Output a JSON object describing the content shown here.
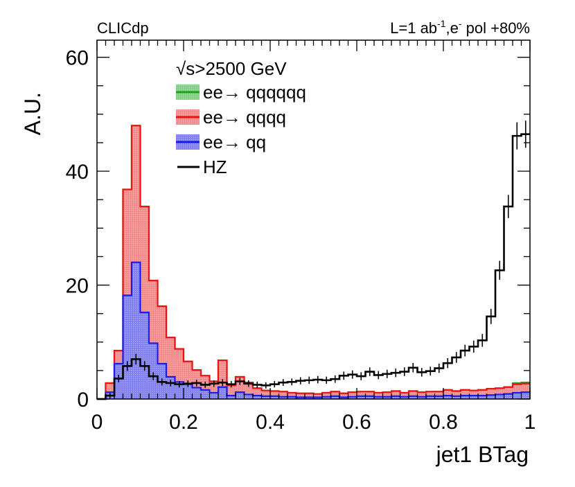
{
  "chart_data": {
    "type": "histogram",
    "experiment_label": "CLICdp",
    "lumi_label": {
      "base": "L=1 ab",
      "sup1": "-1",
      "mid": ",e",
      "sup2": "-",
      "tail": " pol +80%"
    },
    "energy_label": {
      "root": "√",
      "text": "s>2500 GeV"
    },
    "xlabel": "jet1 BTag",
    "ylabel": "A.U.",
    "xlim": [
      0,
      1
    ],
    "ylim": [
      0,
      63
    ],
    "xticks": [
      "0",
      "0.2",
      "0.4",
      "0.6",
      "0.8",
      "1"
    ],
    "yticks": [
      "0",
      "20",
      "40",
      "60"
    ],
    "bin_edges_x": [
      0,
      0.02,
      0.04,
      0.06,
      0.08,
      0.1,
      0.12,
      0.14,
      0.16,
      0.18,
      0.2,
      0.22,
      0.24,
      0.26,
      0.28,
      0.3,
      0.32,
      0.34,
      0.36,
      0.38,
      0.4,
      0.42,
      0.44,
      0.46,
      0.48,
      0.5,
      0.52,
      0.54,
      0.56,
      0.58,
      0.6,
      0.62,
      0.64,
      0.66,
      0.68,
      0.7,
      0.72,
      0.74,
      0.76,
      0.78,
      0.8,
      0.82,
      0.84,
      0.86,
      0.88,
      0.9,
      0.92,
      0.94,
      0.96,
      0.98,
      1.0
    ],
    "stacks": [
      {
        "name": "ee→ qqqqqq",
        "color": "#22a022",
        "fill": "#7fd07f",
        "values": [
          0,
          2.8,
          8.5,
          36.8,
          48.0,
          33.8,
          20.8,
          16.3,
          10.8,
          8.8,
          6.6,
          5.1,
          4.1,
          3.1,
          6.8,
          2.4,
          3.9,
          2.9,
          1.9,
          1.5,
          1.4,
          1.3,
          1.1,
          1.0,
          1.0,
          0.9,
          1.1,
          1.3,
          1.0,
          1.2,
          1.3,
          1.3,
          1.1,
          1.2,
          1.4,
          1.1,
          1.4,
          1.2,
          1.3,
          1.3,
          1.6,
          1.4,
          1.6,
          1.5,
          1.6,
          1.8,
          1.9,
          2.1,
          2.8,
          2.9
        ]
      },
      {
        "name": "ee→ qqqq",
        "color": "#ee1111",
        "fill": "#f28a8a",
        "values": [
          0,
          2.8,
          8.5,
          36.8,
          48.0,
          33.8,
          20.8,
          16.3,
          10.8,
          8.8,
          6.6,
          5.1,
          4.1,
          3.1,
          6.8,
          2.4,
          3.9,
          2.9,
          1.9,
          1.5,
          1.4,
          1.3,
          1.1,
          1.0,
          1.0,
          0.9,
          1.1,
          1.3,
          1.0,
          1.2,
          1.3,
          1.3,
          1.1,
          1.2,
          1.4,
          1.1,
          1.4,
          1.2,
          1.3,
          1.3,
          1.6,
          1.4,
          1.6,
          1.5,
          1.6,
          1.8,
          1.9,
          2.1,
          2.6,
          2.7
        ]
      },
      {
        "name": "ee→ qq",
        "color": "#1b1bee",
        "fill": "#7f7ff0",
        "values": [
          0,
          1.2,
          6.2,
          18.2,
          24.0,
          15.2,
          9.8,
          6.2,
          3.9,
          3.0,
          2.6,
          2.0,
          1.6,
          1.1,
          2.1,
          0.6,
          1.2,
          0.8,
          0.6,
          0.5,
          0.5,
          0.4,
          0.4,
          0.3,
          0.3,
          0.3,
          0.4,
          0.5,
          0.3,
          0.4,
          0.5,
          0.5,
          0.4,
          0.4,
          0.5,
          0.4,
          0.5,
          0.4,
          0.5,
          0.5,
          0.6,
          0.5,
          0.6,
          0.6,
          0.6,
          0.7,
          0.8,
          0.9,
          1.1,
          1.2
        ]
      }
    ],
    "signal": {
      "name": "HZ",
      "color": "#000000",
      "values": [
        0,
        0.6,
        3.6,
        5.8,
        7.0,
        5.8,
        4.0,
        3.0,
        2.8,
        2.6,
        2.7,
        2.8,
        2.5,
        2.7,
        2.9,
        2.6,
        3.1,
        2.7,
        2.5,
        2.4,
        2.6,
        2.9,
        3.0,
        3.2,
        3.3,
        3.4,
        3.3,
        3.5,
        4.1,
        4.3,
        4.0,
        4.8,
        4.2,
        4.4,
        4.6,
        4.8,
        5.5,
        4.7,
        4.9,
        5.4,
        6.3,
        7.3,
        8.5,
        9.2,
        10.3,
        14.5,
        22.6,
        33.8,
        46.2,
        46.5
      ]
    },
    "legend": [
      {
        "label": "ee→ qqqqqq",
        "kind": "fill",
        "color": "#22a022",
        "fill": "#7fd07f"
      },
      {
        "label": "ee→ qqqq",
        "kind": "fill",
        "color": "#ee1111",
        "fill": "#f28a8a"
      },
      {
        "label": "ee→ qq",
        "kind": "fill",
        "color": "#1b1bee",
        "fill": "#7f7ff0"
      },
      {
        "label": "HZ",
        "kind": "line",
        "color": "#000000"
      }
    ]
  }
}
